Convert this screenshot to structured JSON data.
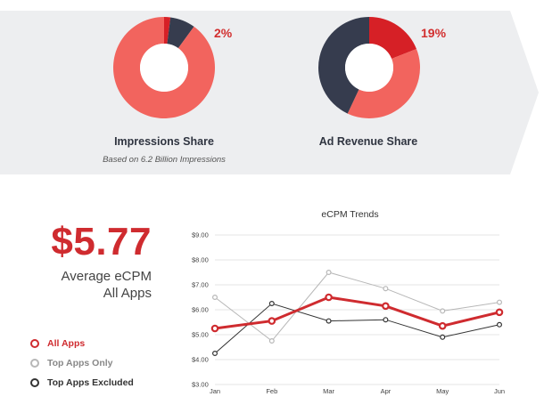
{
  "colors": {
    "banner_bg": "#edeef0",
    "salmon": "#f2645e",
    "dark": "#363c4e",
    "red": "#d62026",
    "line_all": "#cf2b2f",
    "line_top": "#b7b7b7",
    "line_excluded": "#333333",
    "grid": "#e6e6e6"
  },
  "donuts": [
    {
      "title": "Impressions Share",
      "subtitle": "Based on 6.2 Billion Impressions",
      "highlight_label": "2%",
      "slices": [
        {
          "name": "red",
          "value": 2
        },
        {
          "name": "dark",
          "value": 8
        },
        {
          "name": "salmon",
          "value": 90
        }
      ]
    },
    {
      "title": "Ad Revenue Share",
      "subtitle": "",
      "highlight_label": "19%",
      "slices": [
        {
          "name": "red",
          "value": 19
        },
        {
          "name": "salmon",
          "value": 38
        },
        {
          "name": "dark",
          "value": 43
        }
      ]
    }
  ],
  "headline": {
    "value": "$5.77",
    "label_line1": "Average eCPM",
    "label_line2": "All Apps"
  },
  "legend": [
    {
      "label": "All Apps",
      "color": "#cf2b2f"
    },
    {
      "label": "Top Apps Only",
      "color": "#b7b7b7"
    },
    {
      "label": "Top Apps Excluded",
      "color": "#333333"
    }
  ],
  "chart_data": {
    "type": "line",
    "title": "eCPM Trends",
    "categories": [
      "Jan",
      "Feb",
      "Mar",
      "Apr",
      "May",
      "Jun"
    ],
    "ylim": [
      3,
      9
    ],
    "yticks": [
      "$3.00",
      "$4.00",
      "$5.00",
      "$6.00",
      "$7.00",
      "$8.00",
      "$9.00"
    ],
    "grid": true,
    "series": [
      {
        "name": "All Apps",
        "values": [
          5.25,
          5.55,
          6.5,
          6.15,
          5.35,
          5.9
        ],
        "color": "#cf2b2f",
        "width": 3
      },
      {
        "name": "Top Apps Only",
        "values": [
          6.5,
          4.75,
          7.5,
          6.85,
          5.95,
          6.3
        ],
        "color": "#b7b7b7",
        "width": 1
      },
      {
        "name": "Top Apps Excluded",
        "values": [
          4.25,
          6.25,
          5.55,
          5.6,
          4.9,
          5.4
        ],
        "color": "#333333",
        "width": 1
      }
    ]
  }
}
